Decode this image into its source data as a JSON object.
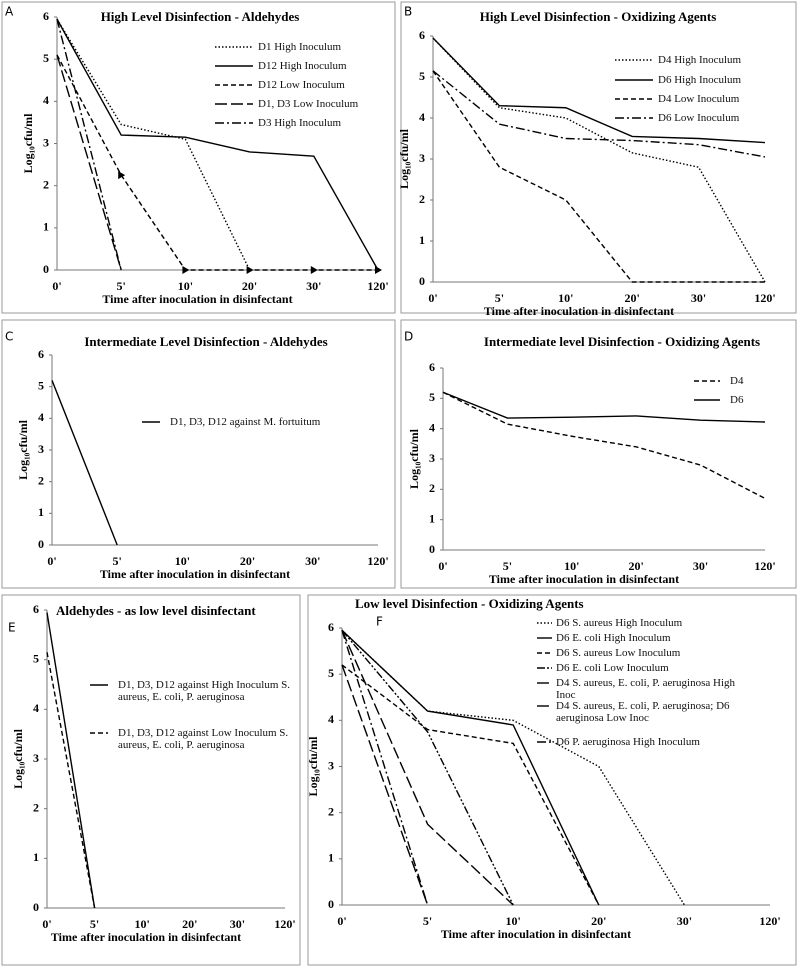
{
  "chart_data": [
    {
      "type": "line",
      "panel": "A",
      "title": "High Level Disinfection - Aldehydes",
      "xlabel": "Time after inoculation in disinfectant",
      "ylabel": "Log₁₀cfu/ml",
      "categories": [
        "0'",
        "5'",
        "10'",
        "20'",
        "30'",
        "120'"
      ],
      "ylim": [
        0,
        6
      ],
      "yticks": [
        0,
        1,
        2,
        3,
        4,
        5,
        6
      ],
      "series": [
        {
          "name": "D1 High Inoculum",
          "color": "#000000",
          "dash": "dotted",
          "values": [
            5.95,
            3.45,
            3.1,
            0,
            null,
            null
          ]
        },
        {
          "name": "D12 High Inoculum",
          "color": "#000000",
          "dash": "solid",
          "values": [
            5.95,
            3.2,
            3.15,
            2.8,
            2.7,
            0
          ]
        },
        {
          "name": "D12 Low Inoculum",
          "color": "#000000",
          "dash": "dashed",
          "marker": "triangle",
          "values": [
            5.1,
            2.25,
            0,
            0,
            0,
            0
          ]
        },
        {
          "name": "D1, D3 Low Inoculum",
          "color": "#000000",
          "dash": "longdash",
          "values": [
            5.1,
            0,
            null,
            null,
            null,
            null
          ]
        },
        {
          "name": "D3 High Inoculum",
          "color": "#000000",
          "dash": "dashdot",
          "values": [
            5.95,
            0,
            null,
            null,
            null,
            null
          ]
        }
      ]
    },
    {
      "type": "line",
      "panel": "B",
      "title": "High Level Disinfection - Oxidizing Agents",
      "xlabel": "Time after inoculation in disinfectant",
      "ylabel": "Log₁₀cfu/ml",
      "categories": [
        "0'",
        "5'",
        "10'",
        "20'",
        "30'",
        "120'"
      ],
      "ylim": [
        0,
        6
      ],
      "yticks": [
        0,
        1,
        2,
        3,
        4,
        5,
        6
      ],
      "series": [
        {
          "name": "D4 High Inoculum",
          "color": "#000000",
          "dash": "dotted",
          "values": [
            5.95,
            4.25,
            4.0,
            3.15,
            2.8,
            0
          ]
        },
        {
          "name": "D6 High Inoculum",
          "color": "#000000",
          "dash": "solid",
          "values": [
            5.95,
            4.3,
            4.25,
            3.55,
            3.5,
            3.4
          ]
        },
        {
          "name": "D4 Low Inoculum",
          "color": "#000000",
          "dash": "dashed",
          "values": [
            5.15,
            2.8,
            2.0,
            0,
            0,
            0
          ]
        },
        {
          "name": "D6 Low Inoculum",
          "color": "#000000",
          "dash": "dashdot",
          "values": [
            5.15,
            3.85,
            3.5,
            3.45,
            3.35,
            3.05
          ]
        }
      ]
    },
    {
      "type": "line",
      "panel": "C",
      "title": "Intermediate Level Disinfection - Aldehydes",
      "xlabel": "Time after inoculation in disinfectant",
      "ylabel": "Log₁₀cfu/ml",
      "categories": [
        "0'",
        "5'",
        "10'",
        "20'",
        "30'",
        "120'"
      ],
      "ylim": [
        0,
        6
      ],
      "yticks": [
        0,
        1,
        2,
        3,
        4,
        5,
        6
      ],
      "series": [
        {
          "name": "D1, D3, D12 against M. fortuitum",
          "color": "#000000",
          "dash": "solid",
          "values": [
            5.2,
            0,
            null,
            null,
            null,
            null
          ]
        }
      ]
    },
    {
      "type": "line",
      "panel": "D",
      "title": "Intermediate level Disinfection - Oxidizing Agents",
      "xlabel": "Time after inoculation in disinfectant",
      "ylabel": "Log₁₀cfu/ml",
      "categories": [
        "0'",
        "5'",
        "10'",
        "20'",
        "30'",
        "120'"
      ],
      "ylim": [
        0,
        6
      ],
      "yticks": [
        0,
        1,
        2,
        3,
        4,
        5,
        6
      ],
      "series": [
        {
          "name": "D4",
          "color": "#000000",
          "dash": "dashed",
          "values": [
            5.2,
            4.15,
            3.75,
            3.4,
            2.8,
            1.7
          ]
        },
        {
          "name": "D6",
          "color": "#000000",
          "dash": "solid",
          "values": [
            5.2,
            4.35,
            4.38,
            4.42,
            4.28,
            4.22
          ]
        }
      ]
    },
    {
      "type": "line",
      "panel": "E",
      "title": "Aldehydes - as low level disinfectant",
      "xlabel": "Time after inoculation in disinfectant",
      "ylabel": "Log₁₀cfu/ml",
      "categories": [
        "0'",
        "5'",
        "10'",
        "20'",
        "30'",
        "120'"
      ],
      "ylim": [
        0,
        6
      ],
      "yticks": [
        0,
        1,
        2,
        3,
        4,
        5,
        6
      ],
      "series": [
        {
          "name": "D1, D3, D12 against High Inoculum S. aureus, E. coli, P. aeruginosa",
          "color": "#000000",
          "dash": "solid",
          "values": [
            5.95,
            0,
            null,
            null,
            null,
            null
          ]
        },
        {
          "name": "D1, D3, D12 against Low Inoculum S. aureus, E. coli, P. aeruginosa",
          "color": "#000000",
          "dash": "dashed",
          "values": [
            5.15,
            0,
            null,
            null,
            null,
            null
          ]
        }
      ]
    },
    {
      "type": "line",
      "panel": "F",
      "title": "Low level Disinfection - Oxidizing Agents",
      "xlabel": "Time after inoculation in disinfectant",
      "ylabel": "Log₁₀cfu/ml",
      "categories": [
        "0'",
        "5'",
        "10'",
        "20'",
        "30'",
        "120'"
      ],
      "ylim": [
        0,
        6
      ],
      "yticks": [
        0,
        1,
        2,
        3,
        4,
        5,
        6
      ],
      "series": [
        {
          "name": "D6 S. aureus High Inoculum",
          "color": "#000000",
          "dash": "dotted",
          "values": [
            5.95,
            4.2,
            4.0,
            3.0,
            0,
            null
          ]
        },
        {
          "name": "D6 E. coli High Inoculum",
          "color": "#000000",
          "dash": "solid",
          "values": [
            5.95,
            4.2,
            3.9,
            0,
            null,
            null
          ]
        },
        {
          "name": "D6 S. aureus Low Inoculum",
          "color": "#000000",
          "dash": "dashed",
          "values": [
            5.2,
            3.8,
            3.5,
            0,
            null,
            null
          ]
        },
        {
          "name": "D6 E. coli Low Inoculum",
          "color": "#000000",
          "dash": "dashdotdot",
          "values": [
            5.95,
            3.75,
            0,
            null,
            null,
            null
          ]
        },
        {
          "name": "D4 S. aureus, E. coli, P. aeruginosa High Inoc",
          "color": "#000000",
          "dash": "longdash",
          "values": [
            5.95,
            1.75,
            0,
            null,
            null,
            null
          ]
        },
        {
          "name": "D4 S. aureus, E. coli, P. aeruginosa; D6 aeruginosa Low Inoc",
          "color": "#000000",
          "dash": "longdash",
          "values": [
            5.2,
            0,
            null,
            null,
            null,
            null
          ]
        },
        {
          "name": "D6 P. aeruginosa High Inoculum",
          "color": "#000000",
          "dash": "dashdot",
          "values": [
            5.95,
            0,
            null,
            null,
            null,
            null
          ]
        }
      ]
    }
  ]
}
